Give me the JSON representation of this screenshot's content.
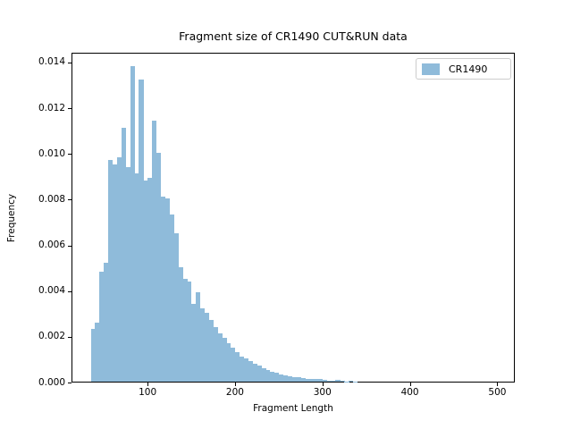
{
  "figure": {
    "title": "Fragment size of CR1490 CUT&RUN data"
  },
  "legend": {
    "label": "CR1490",
    "swatch_color": "#8fbbda",
    "position": "upper right"
  },
  "chart_data": {
    "type": "bar",
    "subtype": "histogram",
    "title": "Fragment size of CR1490 CUT&RUN data",
    "xlabel": "Fragment Length",
    "ylabel": "Frequency",
    "xlim": [
      13,
      520
    ],
    "ylim": [
      0,
      0.01443
    ],
    "x_ticks": [
      100,
      200,
      300,
      400,
      500
    ],
    "y_ticks": [
      0.0,
      0.002,
      0.004,
      0.006,
      0.008,
      0.01,
      0.012,
      0.014
    ],
    "y_tick_labels": [
      "0.000",
      "0.002",
      "0.004",
      "0.006",
      "0.008",
      "0.010",
      "0.012",
      "0.014"
    ],
    "grid": false,
    "legend_position": "upper right",
    "bar_color": "#8fbbda",
    "bin_width": 5,
    "series": [
      {
        "name": "CR1490",
        "bin_starts": [
          35,
          40,
          45,
          50,
          55,
          60,
          65,
          70,
          75,
          80,
          85,
          90,
          95,
          100,
          105,
          110,
          115,
          120,
          125,
          130,
          135,
          140,
          145,
          150,
          155,
          160,
          165,
          170,
          175,
          180,
          185,
          190,
          195,
          200,
          205,
          210,
          215,
          220,
          225,
          230,
          235,
          240,
          245,
          250,
          255,
          260,
          265,
          270,
          275,
          280,
          285,
          290,
          295,
          300,
          305,
          310,
          315,
          320,
          325,
          330,
          335
        ],
        "values": [
          0.0023,
          0.0026,
          0.0048,
          0.0052,
          0.0097,
          0.0095,
          0.0098,
          0.0111,
          0.0094,
          0.0138,
          0.0091,
          0.0132,
          0.0088,
          0.0089,
          0.0114,
          0.01,
          0.0081,
          0.008,
          0.0073,
          0.0065,
          0.005,
          0.0045,
          0.0044,
          0.0034,
          0.0039,
          0.0032,
          0.003,
          0.0027,
          0.0024,
          0.0021,
          0.0019,
          0.0017,
          0.0015,
          0.0013,
          0.0011,
          0.001,
          0.0009,
          0.0008,
          0.0007,
          0.0006,
          0.0005,
          0.00045,
          0.0004,
          0.00032,
          0.00028,
          0.00024,
          0.0002,
          0.00018,
          0.00015,
          0.00013,
          0.00012,
          0.00012,
          0.00013,
          7e-05,
          5e-05,
          4e-05,
          7e-05,
          3e-05,
          2e-05,
          5e-05,
          2e-05
        ]
      }
    ]
  }
}
